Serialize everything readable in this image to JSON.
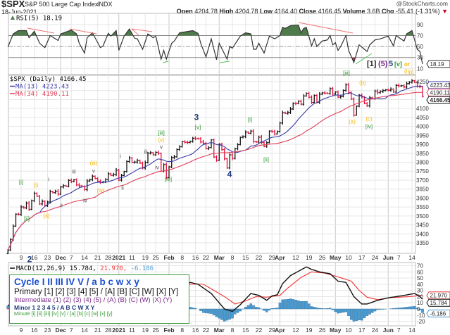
{
  "header": {
    "symbol": "$SPX",
    "name": "S&P 500 Large Cap Index",
    "exchange": "INDX",
    "copyright": "@StockCharts.com",
    "date": "18-Jun-2021",
    "open_label": "Open",
    "open": "4204.78",
    "high_label": "High",
    "high": "4204.78",
    "low_label": "Low",
    "low": "4164.40",
    "close_label": "Close",
    "close": "4166.45",
    "volume_label": "Volume",
    "volume": "3.6B",
    "chg_label": "Chg",
    "chg": "-55.41 (-1.31%)",
    "chg_icon": "triangle-down-icon"
  },
  "colors": {
    "up": "#111111",
    "down": "#e0103a",
    "ma13": "#3a3aa8",
    "ma34": "#e0405a",
    "rsi": "#333333",
    "rsi_over": "#4f7a4a",
    "rsi_under": "#c0304a",
    "macd": "#111111",
    "signal": "#ee3333",
    "hist": "#4a9bd1"
  },
  "chart_data": [
    {
      "type": "line",
      "panel": "RSI",
      "title": "RSI(5) 18.19",
      "current_label": "18.19",
      "ylim": [
        0,
        100
      ],
      "y_ticks": [
        "90",
        "70",
        "50",
        "30",
        "10"
      ],
      "levels": [
        70,
        50,
        30
      ],
      "values": {
        "2020-11-02": 49,
        "2020-11-04": 73,
        "2020-11-06": 79,
        "2020-11-11": 79,
        "2020-11-12": 66,
        "2020-11-16": 78,
        "2020-11-18": 56,
        "2020-11-20": 48,
        "2020-11-24": 70,
        "2020-11-30": 61,
        "2020-12-01": 73,
        "2020-12-07": 80,
        "2020-12-09": 73,
        "2020-12-10": 56,
        "2020-12-14": 38,
        "2020-12-15": 66,
        "2020-12-17": 75,
        "2020-12-22": 48,
        "2020-12-23": 51,
        "2020-12-28": 74,
        "2020-12-29": 69,
        "2020-12-31": 79,
        "2021-01-04": 43,
        "2021-01-06": 69,
        "2021-01-08": 82,
        "2021-01-12": 65,
        "2021-01-13": 64,
        "2021-01-15": 45,
        "2021-01-20": 73,
        "2021-01-22": 66,
        "2021-01-25": 69,
        "2021-01-27": 27,
        "2021-01-28": 43,
        "2021-01-29": 27,
        "2021-02-02": 56,
        "2021-02-03": 60,
        "2021-02-05": 75,
        "2021-02-12": 79,
        "2021-02-17": 74,
        "2021-02-18": 56,
        "2021-02-22": 31,
        "2021-02-24": 64,
        "2021-02-26": 26,
        "2021-03-01": 56,
        "2021-03-04": 27,
        "2021-03-05": 50,
        "2021-03-08": 47,
        "2021-03-11": 69,
        "2021-03-15": 75,
        "2021-03-17": 73,
        "2021-03-18": 45,
        "2021-03-19": 45,
        "2021-03-22": 56,
        "2021-03-24": 38,
        "2021-03-26": 69,
        "2021-03-30": 64,
        "2021-04-01": 70,
        "2021-04-05": 85,
        "2021-04-06": 83,
        "2021-04-08": 88,
        "2021-04-12": 89,
        "2021-04-13": 89,
        "2021-04-14": 75,
        "2021-04-15": 83,
        "2021-04-16": 85,
        "2021-04-20": 51,
        "2021-04-21": 64,
        "2021-04-22": 50,
        "2021-04-26": 60,
        "2021-04-28": 62,
        "2021-04-29": 70,
        "2021-04-30": 53,
        "2021-05-03": 57,
        "2021-05-04": 43,
        "2021-05-05": 50,
        "2021-05-07": 70,
        "2021-05-10": 43,
        "2021-05-12": 21,
        "2021-05-14": 53,
        "2021-05-19": 41,
        "2021-05-20": 53,
        "2021-05-24": 62,
        "2021-05-26": 64,
        "2021-06-01": 69,
        "2021-06-03": 51,
        "2021-06-04": 70,
        "2021-06-09": 60,
        "2021-06-10": 73,
        "2021-06-14": 79,
        "2021-06-16": 45,
        "2021-06-17": 41,
        "2021-06-18": 18.19
      }
    },
    {
      "type": "ohlc",
      "panel": "Price",
      "title": "$SPX (Daily) 4166.45",
      "ylim": [
        3300,
        4270
      ],
      "y_ticks": [
        "4250",
        "4100",
        "4050",
        "4000",
        "3950",
        "3900",
        "3850",
        "3800",
        "3750",
        "3700",
        "3650",
        "3600",
        "3550",
        "3500",
        "3450",
        "3400",
        "3350"
      ],
      "series": [
        {
          "name": "MA(13) 4223.43",
          "label": "4223.43",
          "period": 13
        },
        {
          "name": "MA(34) 4190.11",
          "label": "4190.11",
          "period": 34
        }
      ],
      "last_label": "4166.45",
      "closes": {
        "2020-11-02": 3310,
        "2020-11-03": 3369,
        "2020-11-04": 3443,
        "2020-11-05": 3510,
        "2020-11-06": 3509,
        "2020-11-09": 3550,
        "2020-11-10": 3545,
        "2020-11-11": 3572,
        "2020-11-12": 3537,
        "2020-11-13": 3585,
        "2020-11-16": 3627,
        "2020-11-17": 3610,
        "2020-11-18": 3567,
        "2020-11-19": 3582,
        "2020-11-20": 3557,
        "2020-11-23": 3578,
        "2020-11-24": 3635,
        "2020-11-25": 3630,
        "2020-11-27": 3638,
        "2020-11-30": 3622,
        "2020-12-01": 3662,
        "2020-12-02": 3669,
        "2020-12-03": 3666,
        "2020-12-04": 3699,
        "2020-12-07": 3692,
        "2020-12-08": 3702,
        "2020-12-09": 3673,
        "2020-12-10": 3668,
        "2020-12-11": 3663,
        "2020-12-14": 3647,
        "2020-12-15": 3695,
        "2020-12-16": 3702,
        "2020-12-17": 3722,
        "2020-12-18": 3709,
        "2020-12-21": 3694,
        "2020-12-22": 3687,
        "2020-12-23": 3690,
        "2020-12-24": 3703,
        "2020-12-28": 3735,
        "2020-12-29": 3727,
        "2020-12-30": 3732,
        "2020-12-31": 3756,
        "2021-01-04": 3700,
        "2021-01-05": 3726,
        "2021-01-06": 3748,
        "2021-01-07": 3804,
        "2021-01-08": 3824,
        "2021-01-11": 3799,
        "2021-01-12": 3801,
        "2021-01-13": 3809,
        "2021-01-14": 3795,
        "2021-01-15": 3768,
        "2021-01-19": 3798,
        "2021-01-20": 3851,
        "2021-01-21": 3853,
        "2021-01-22": 3841,
        "2021-01-25": 3855,
        "2021-01-26": 3849,
        "2021-01-27": 3750,
        "2021-01-28": 3787,
        "2021-01-29": 3714,
        "2021-02-01": 3774,
        "2021-02-02": 3826,
        "2021-02-03": 3830,
        "2021-02-04": 3871,
        "2021-02-05": 3886,
        "2021-02-08": 3915,
        "2021-02-09": 3911,
        "2021-02-10": 3910,
        "2021-02-11": 3916,
        "2021-02-12": 3934,
        "2021-02-16": 3932,
        "2021-02-17": 3931,
        "2021-02-18": 3913,
        "2021-02-19": 3906,
        "2021-02-22": 3876,
        "2021-02-23": 3881,
        "2021-02-24": 3925,
        "2021-02-25": 3829,
        "2021-02-26": 3811,
        "2021-03-01": 3901,
        "2021-03-02": 3870,
        "2021-03-03": 3819,
        "2021-03-04": 3768,
        "2021-03-05": 3841,
        "2021-03-08": 3821,
        "2021-03-09": 3875,
        "2021-03-10": 3898,
        "2021-03-11": 3939,
        "2021-03-12": 3943,
        "2021-03-15": 3968,
        "2021-03-16": 3962,
        "2021-03-17": 3974,
        "2021-03-18": 3915,
        "2021-03-19": 3913,
        "2021-03-22": 3940,
        "2021-03-23": 3910,
        "2021-03-24": 3889,
        "2021-03-25": 3909,
        "2021-03-26": 3974,
        "2021-03-29": 3971,
        "2021-03-30": 3958,
        "2021-03-31": 3972,
        "2021-04-01": 4019,
        "2021-04-05": 4077,
        "2021-04-06": 4073,
        "2021-04-07": 4079,
        "2021-04-08": 4097,
        "2021-04-09": 4128,
        "2021-04-12": 4127,
        "2021-04-13": 4141,
        "2021-04-14": 4124,
        "2021-04-15": 4170,
        "2021-04-16": 4185,
        "2021-04-19": 4163,
        "2021-04-20": 4134,
        "2021-04-21": 4173,
        "2021-04-22": 4135,
        "2021-04-23": 4180,
        "2021-04-26": 4187,
        "2021-04-27": 4186,
        "2021-04-28": 4183,
        "2021-04-29": 4211,
        "2021-04-30": 4181,
        "2021-05-03": 4192,
        "2021-05-04": 4164,
        "2021-05-05": 4167,
        "2021-05-06": 4201,
        "2021-05-07": 4232,
        "2021-05-10": 4189,
        "2021-05-11": 4153,
        "2021-05-12": 4063,
        "2021-05-13": 4113,
        "2021-05-14": 4174,
        "2021-05-17": 4164,
        "2021-05-18": 4128,
        "2021-05-19": 4115,
        "2021-05-20": 4160,
        "2021-05-21": 4156,
        "2021-05-24": 4197,
        "2021-05-25": 4188,
        "2021-05-26": 4195,
        "2021-05-27": 4200,
        "2021-05-28": 4204,
        "2021-06-01": 4202,
        "2021-06-02": 4208,
        "2021-06-03": 4192,
        "2021-06-04": 4229,
        "2021-06-07": 4226,
        "2021-06-08": 4227,
        "2021-06-09": 4220,
        "2021-06-10": 4239,
        "2021-06-11": 4247,
        "2021-06-14": 4255,
        "2021-06-15": 4246,
        "2021-06-16": 4223,
        "2021-06-17": 4222,
        "2021-06-18": 4166.45
      }
    },
    {
      "type": "line",
      "panel": "MACD",
      "title_main": "MACD(12,26,9) 15.784, ",
      "title_signal": "21.970, ",
      "title_hist": "-6.186",
      "ylim": [
        -25,
        75
      ],
      "y_ticks": [
        "70",
        "60",
        "50",
        "40",
        "30",
        "20",
        "10",
        "0",
        "-10",
        "-20"
      ],
      "labels": {
        "macd": "15.784",
        "signal": "21.970",
        "hist": "-6.186"
      },
      "macd": {
        "2020-11-02": 5,
        "2020-11-09": 22,
        "2020-11-16": 38,
        "2020-11-24": 42,
        "2020-12-04": 50,
        "2020-12-10": 45,
        "2020-12-18": 40,
        "2020-12-31": 38,
        "2021-01-08": 48,
        "2021-01-15": 45,
        "2021-01-22": 43,
        "2021-01-29": 25,
        "2021-02-05": 30,
        "2021-02-11": 43,
        "2021-02-17": 40,
        "2021-02-24": 25,
        "2021-03-03": 0,
        "2021-03-08": -4,
        "2021-03-11": 7,
        "2021-03-17": 25,
        "2021-03-22": 22,
        "2021-03-25": 14,
        "2021-03-29": 21,
        "2021-03-31": 23,
        "2021-04-05": 41,
        "2021-04-08": 54,
        "2021-04-13": 61,
        "2021-04-16": 68,
        "2021-04-20": 64,
        "2021-04-23": 60,
        "2021-04-29": 57,
        "2021-05-04": 45,
        "2021-05-07": 43,
        "2021-05-12": 20,
        "2021-05-17": 8,
        "2021-05-19": 8,
        "2021-05-25": 14,
        "2021-06-01": 18,
        "2021-06-09": 22,
        "2021-06-15": 25,
        "2021-06-17": 20,
        "2021-06-18": 15.784
      },
      "signal": {
        "2020-11-02": 0,
        "2020-11-09": 8,
        "2020-11-16": 20,
        "2020-11-24": 32,
        "2020-12-04": 42,
        "2020-12-18": 43,
        "2020-12-31": 40,
        "2021-01-15": 44,
        "2021-01-29": 36,
        "2021-02-05": 33,
        "2021-02-11": 40,
        "2021-02-19": 40,
        "2021-03-01": 25,
        "2021-03-03": 20,
        "2021-03-09": 8,
        "2021-03-15": 13,
        "2021-03-19": 20,
        "2021-03-25": 19,
        "2021-04-01": 22,
        "2021-04-07": 34,
        "2021-04-14": 51,
        "2021-04-20": 60,
        "2021-04-27": 58,
        "2021-05-04": 52,
        "2021-05-11": 45,
        "2021-05-14": 30,
        "2021-05-19": 19,
        "2021-05-25": 15,
        "2021-06-01": 18,
        "2021-06-11": 20,
        "2021-06-18": 21.97
      }
    }
  ],
  "x_ticks": [
    {
      "label": "9",
      "date": "2020-11-09"
    },
    {
      "label": "16",
      "date": "2020-11-16"
    },
    {
      "label": "23",
      "date": "2020-11-23"
    },
    {
      "label": "Dec",
      "date": "2020-12-01",
      "month": true
    },
    {
      "label": "7",
      "date": "2020-12-07"
    },
    {
      "label": "14",
      "date": "2020-12-14"
    },
    {
      "label": "21",
      "date": "2020-12-21"
    },
    {
      "label": "28",
      "date": "2020-12-28"
    },
    {
      "label": "2021",
      "date": "2021-01-04",
      "month": true
    },
    {
      "label": "11",
      "date": "2021-01-11"
    },
    {
      "label": "19",
      "date": "2021-01-19"
    },
    {
      "label": "25",
      "date": "2021-01-25"
    },
    {
      "label": "Feb",
      "date": "2021-02-01",
      "month": true
    },
    {
      "label": "8",
      "date": "2021-02-08"
    },
    {
      "label": "16",
      "date": "2021-02-16"
    },
    {
      "label": "22",
      "date": "2021-02-22"
    },
    {
      "label": "Mar",
      "date": "2021-03-01",
      "month": true
    },
    {
      "label": "8",
      "date": "2021-03-08"
    },
    {
      "label": "15",
      "date": "2021-03-15"
    },
    {
      "label": "22",
      "date": "2021-03-22"
    },
    {
      "label": "29",
      "date": "2021-03-29"
    },
    {
      "label": "Apr",
      "date": "2021-04-01",
      "month": true
    },
    {
      "label": "12",
      "date": "2021-04-12"
    },
    {
      "label": "19",
      "date": "2021-04-19"
    },
    {
      "label": "26",
      "date": "2021-04-26"
    },
    {
      "label": "May",
      "date": "2021-05-03",
      "month": true
    },
    {
      "label": "10",
      "date": "2021-05-10"
    },
    {
      "label": "17",
      "date": "2021-05-17"
    },
    {
      "label": "24",
      "date": "2021-05-24"
    },
    {
      "label": "Jun",
      "date": "2021-06-01",
      "month": true
    },
    {
      "label": "7",
      "date": "2021-06-07"
    },
    {
      "label": "14",
      "date": "2021-06-14"
    }
  ],
  "wave_labels": [
    "[i]",
    "[ii]",
    "(i)",
    "(ii)",
    "i",
    "ii",
    "iii",
    "iv",
    "(iii)",
    "v",
    "(iv)",
    "i",
    "ii",
    "iii",
    "v",
    "(v)",
    "[iii]",
    "iv",
    "[iv]",
    "3",
    "[v]",
    "4",
    "[i]",
    "[ii]",
    "[iii]",
    "(b)",
    "(a)",
    "(c)",
    "[iv]",
    "(i)",
    "2"
  ],
  "rsi_annotation": {
    "primary": "[1]",
    "intermediate": "(5)",
    "minor": "5",
    "minute": "[v]",
    "or": "or",
    "alt": "(i)"
  },
  "legend": {
    "cycle": "Cycle I II III IV V / a b c w x y",
    "primary": "Primary [1] [2] [3] [4] [5] / [A] [B] [C] [W] [X] [Y]",
    "intermediate": "Intermediate (1) (2) (3) (4) (5) / (A) (B) (C) (W) (X) (Y)",
    "minor": "Minor 1 2 3 4 5 / A B C W X Y",
    "minute": "Minute [i] [ii] [iii] [iv] [v] / [a] [b] [c] [w] [x] [y]"
  }
}
